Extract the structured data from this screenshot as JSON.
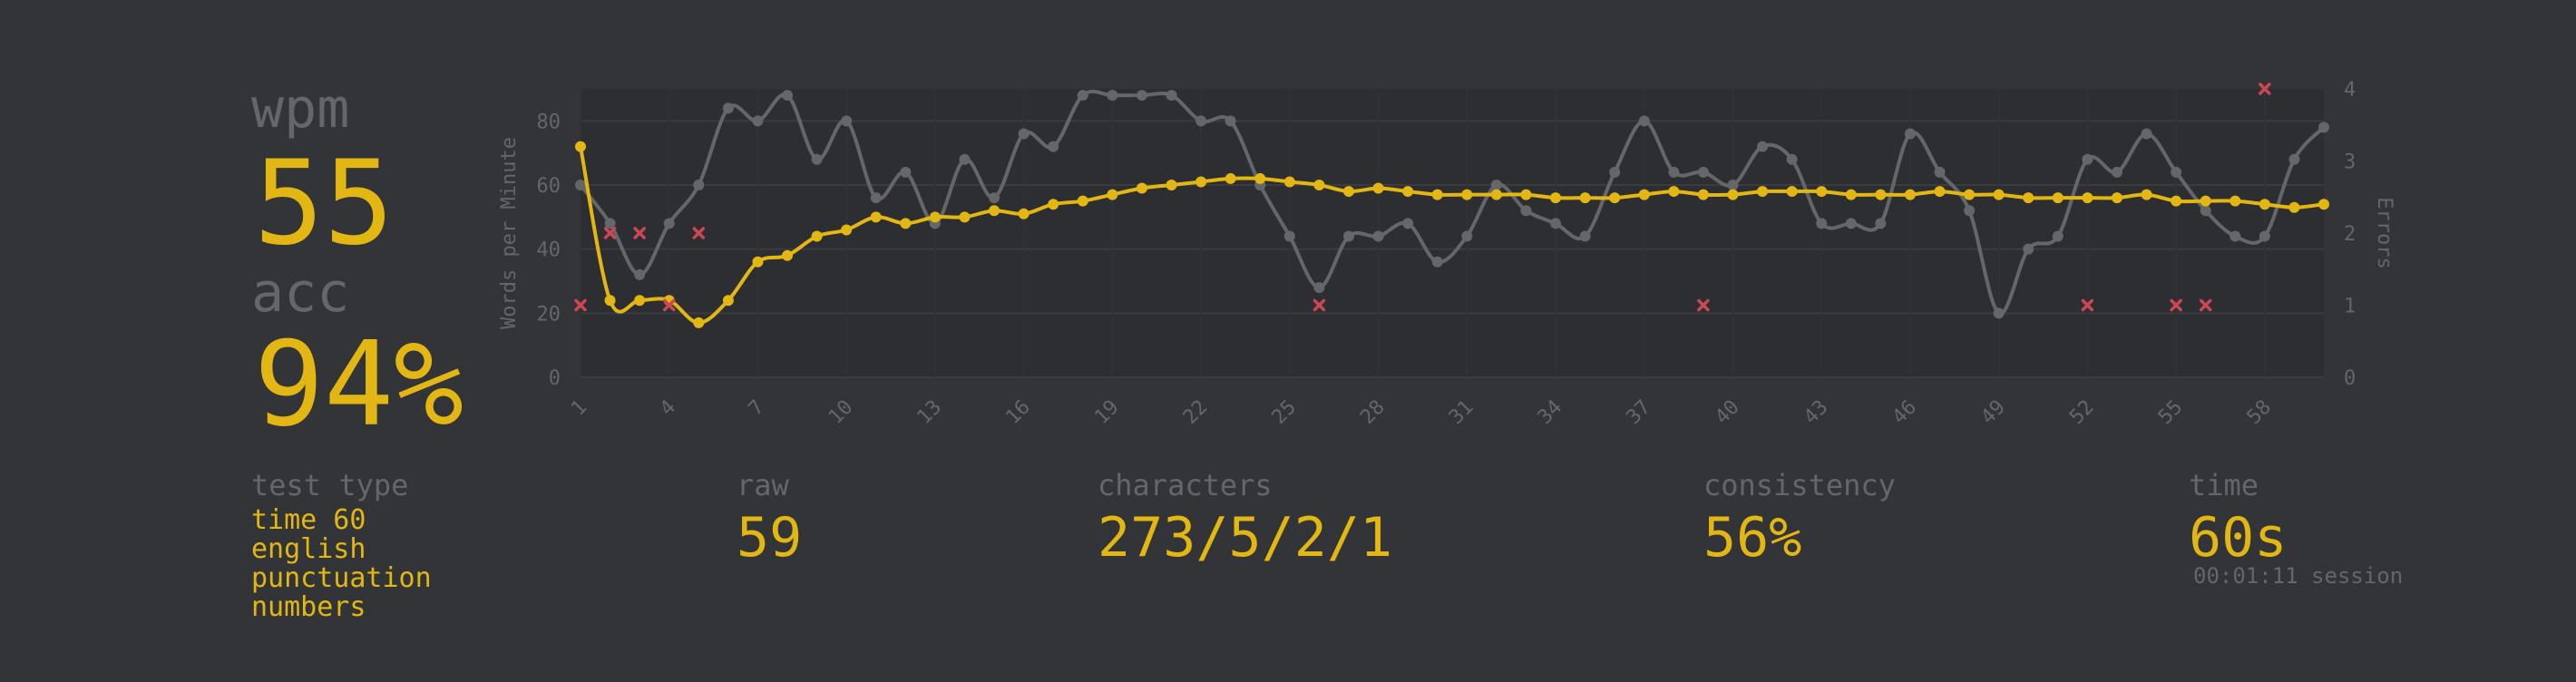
{
  "stats": {
    "wpm_label": "wpm",
    "wpm_value": "55",
    "acc_label": "acc",
    "acc_value": "94%",
    "test_type_label": "test type",
    "test_type_items": [
      "time 60",
      "english",
      "punctuation",
      "numbers"
    ],
    "raw_label": "raw",
    "raw_value": "59",
    "characters_label": "characters",
    "characters_value": "273/5/2/1",
    "consistency_label": "consistency",
    "consistency_value": "56%",
    "time_label": "time",
    "time_value": "60s",
    "session_text": "00:01:11 session"
  },
  "colors": {
    "background": "#323437",
    "accent": "#e2b714",
    "sub": "#646669",
    "error": "#ca4754"
  },
  "chart_data": {
    "type": "line",
    "x": [
      1,
      2,
      3,
      4,
      5,
      6,
      7,
      8,
      9,
      10,
      11,
      12,
      13,
      14,
      15,
      16,
      17,
      18,
      19,
      20,
      21,
      22,
      23,
      24,
      25,
      26,
      27,
      28,
      29,
      30,
      31,
      32,
      33,
      34,
      35,
      36,
      37,
      38,
      39,
      40,
      41,
      42,
      43,
      44,
      45,
      46,
      47,
      48,
      49,
      50,
      51,
      52,
      53,
      54,
      55,
      56,
      57,
      58,
      59,
      60
    ],
    "x_tick_labels": [
      "1",
      "4",
      "7",
      "10",
      "13",
      "16",
      "19",
      "22",
      "25",
      "28",
      "31",
      "34",
      "37",
      "40",
      "43",
      "46",
      "49",
      "52",
      "55",
      "58"
    ],
    "xlim": [
      1,
      60
    ],
    "ylabel": "Words per Minute",
    "ylim": [
      0,
      90
    ],
    "y_ticks": [
      "0",
      "20",
      "40",
      "60",
      "80"
    ],
    "y2label": "Errors",
    "y2lim": [
      0,
      4
    ],
    "y2_ticks": [
      "0",
      "1",
      "2",
      "3",
      "4"
    ],
    "grid": true,
    "series": [
      {
        "role": "wpm",
        "color": "#e2b714",
        "values": [
          72,
          24,
          24,
          24,
          17,
          24,
          36,
          38,
          44,
          46,
          50,
          48,
          50,
          50,
          52,
          51,
          54,
          55,
          57,
          59,
          60,
          61,
          62,
          62,
          61,
          60,
          58,
          59,
          58,
          57,
          57,
          57,
          57,
          56,
          56,
          56,
          57,
          58,
          57,
          57,
          58,
          58,
          58,
          57,
          57,
          57,
          58,
          57,
          57,
          56,
          56,
          56,
          56,
          57,
          55,
          55,
          55,
          54,
          53,
          54
        ]
      },
      {
        "role": "raw",
        "color": "#646669",
        "values": [
          60,
          48,
          32,
          48,
          60,
          84,
          80,
          88,
          68,
          80,
          56,
          64,
          48,
          68,
          56,
          76,
          72,
          88,
          88,
          88,
          88,
          80,
          80,
          60,
          44,
          28,
          44,
          44,
          48,
          36,
          44,
          60,
          52,
          48,
          44,
          64,
          80,
          64,
          64,
          60,
          72,
          68,
          48,
          48,
          48,
          76,
          64,
          52,
          20,
          40,
          44,
          68,
          64,
          76,
          64,
          52,
          44,
          44,
          68,
          78
        ]
      },
      {
        "role": "errors",
        "color": "#ca4754",
        "points": [
          [
            1,
            1
          ],
          [
            2,
            2
          ],
          [
            3,
            2
          ],
          [
            4,
            1
          ],
          [
            5,
            2
          ],
          [
            26,
            1
          ],
          [
            39,
            1
          ],
          [
            52,
            1
          ],
          [
            55,
            1
          ],
          [
            56,
            1
          ],
          [
            58,
            4
          ]
        ]
      }
    ]
  }
}
